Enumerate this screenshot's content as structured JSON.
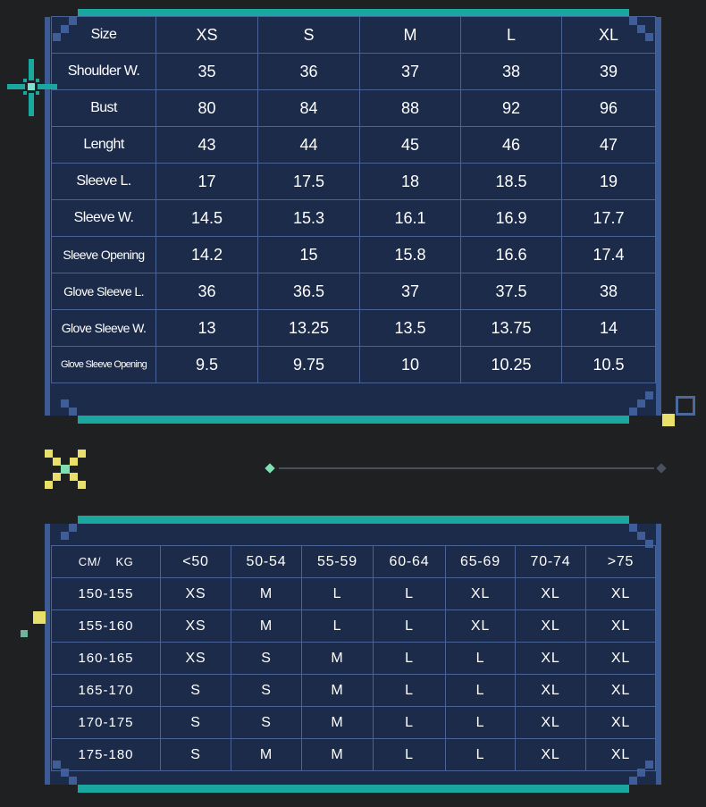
{
  "size_chart": {
    "header": [
      "Size",
      "XS",
      "S",
      "M",
      "L",
      "XL"
    ],
    "rows": [
      {
        "label": "Shoulder W.",
        "values": [
          "35",
          "36",
          "37",
          "38",
          "39"
        ]
      },
      {
        "label": "Bust",
        "values": [
          "80",
          "84",
          "88",
          "92",
          "96"
        ]
      },
      {
        "label": "Lenght",
        "values": [
          "43",
          "44",
          "45",
          "46",
          "47"
        ]
      },
      {
        "label": "Sleeve L.",
        "values": [
          "17",
          "17.5",
          "18",
          "18.5",
          "19"
        ]
      },
      {
        "label": "Sleeve W.",
        "values": [
          "14.5",
          "15.3",
          "16.1",
          "16.9",
          "17.7"
        ]
      },
      {
        "label": "Sleeve Opening",
        "values": [
          "14.2",
          "15",
          "15.8",
          "16.6",
          "17.4"
        ]
      },
      {
        "label": "Glove Sleeve L.",
        "values": [
          "36",
          "36.5",
          "37",
          "37.5",
          "38"
        ]
      },
      {
        "label": "Glove Sleeve W.",
        "values": [
          "13",
          "13.25",
          "13.5",
          "13.75",
          "14"
        ]
      },
      {
        "label": "Glove Sleeve Opening",
        "values": [
          "9.5",
          "9.75",
          "10",
          "10.25",
          "10.5"
        ]
      }
    ]
  },
  "recommend_chart": {
    "corner_cm": "CM/",
    "corner_kg": "KG",
    "weights": [
      "<50",
      "50-54",
      "55-59",
      "60-64",
      "65-69",
      "70-74",
      ">75"
    ],
    "rows": [
      {
        "label": "150-155",
        "values": [
          "XS",
          "M",
          "L",
          "L",
          "XL",
          "XL",
          "XL"
        ]
      },
      {
        "label": "155-160",
        "values": [
          "XS",
          "M",
          "L",
          "L",
          "XL",
          "XL",
          "XL"
        ]
      },
      {
        "label": "160-165",
        "values": [
          "XS",
          "S",
          "M",
          "L",
          "L",
          "XL",
          "XL"
        ]
      },
      {
        "label": "165-170",
        "values": [
          "S",
          "S",
          "M",
          "L",
          "L",
          "XL",
          "XL"
        ]
      },
      {
        "label": "170-175",
        "values": [
          "S",
          "S",
          "M",
          "L",
          "L",
          "XL",
          "XL"
        ]
      },
      {
        "label": "175-180",
        "values": [
          "S",
          "M",
          "M",
          "L",
          "L",
          "XL",
          "XL"
        ]
      }
    ]
  },
  "colors": {
    "background": "#1f2022",
    "panel": "#1c2b4a",
    "border": "#3c5a93",
    "teal": "#1aa7a0",
    "yellow": "#e8e06a",
    "mint": "#7ee0b0"
  },
  "icons": [
    "sparkle-cross-icon",
    "pixel-x-icon",
    "diamond-icon",
    "square-outline-icon"
  ]
}
